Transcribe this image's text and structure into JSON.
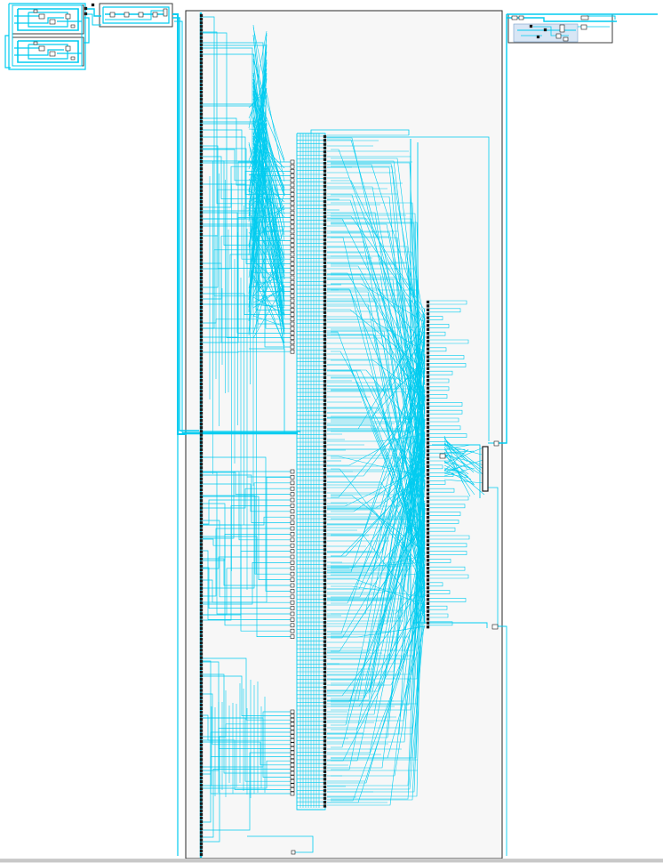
{
  "view": {
    "kind": "elaborated RTL schematic",
    "background": "#ffffff",
    "wire_color": "#00ccf0",
    "module_border_color": "#2a2a2a",
    "module_fill_color": "#f7f7f7",
    "pin_color": "#1a1a1a",
    "selected_fill": "#d8e6f5"
  },
  "modules": [
    "top-left-submodule-a",
    "top-left-submodule-b",
    "top-register-chain",
    "main-datapath-module",
    "output-stage-module"
  ],
  "icons": [
    "cell-glyph",
    "port-pin",
    "mux-glyph",
    "register-glyph"
  ]
}
